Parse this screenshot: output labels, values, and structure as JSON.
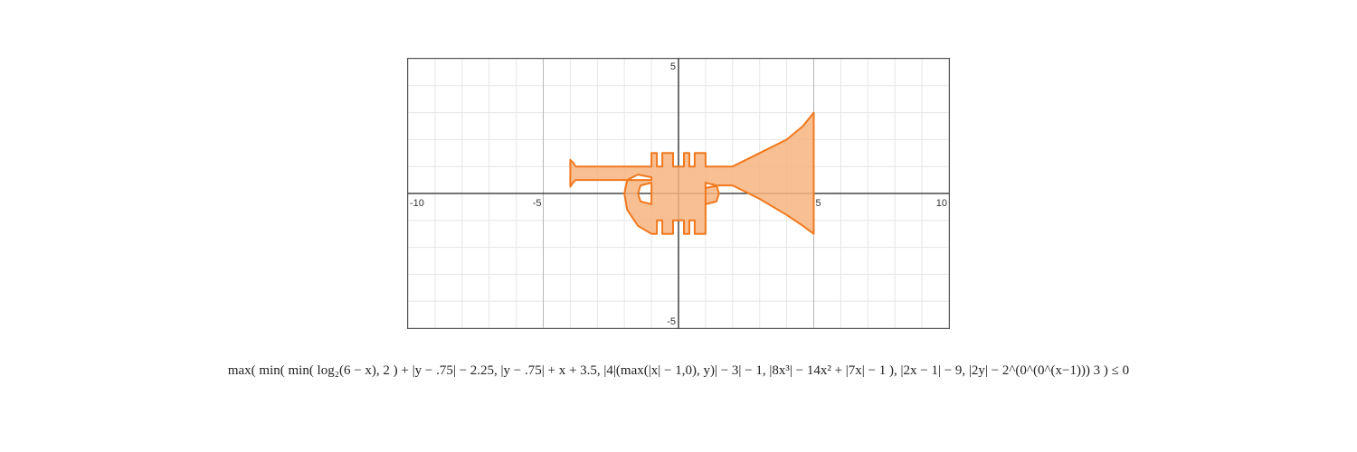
{
  "chart_data": {
    "type": "area",
    "title": "",
    "xlabel": "",
    "ylabel": "",
    "xlim": [
      -10,
      10
    ],
    "ylim": [
      -5,
      5
    ],
    "grid": true,
    "minor_step": 1,
    "major_step": 5,
    "x_tick_labels": [
      "-10",
      "-5",
      "5",
      "10"
    ],
    "y_tick_labels": [
      "5",
      "-5"
    ],
    "region": {
      "name": "trumpet",
      "fill": "#f6b47f",
      "stroke": "#f2781e",
      "x": [
        -4,
        -4,
        -3.9,
        -3.8,
        -3.8,
        -1.0,
        -1.0,
        -0.8,
        -0.8,
        -0.6,
        -0.6,
        -0.2,
        -0.2,
        0.2,
        0.2,
        0.4,
        0.4,
        0.6,
        0.6,
        1.0,
        1.0,
        2.0,
        3.0,
        4.0,
        4.6,
        5.0,
        5.0,
        4.6,
        4.0,
        3.0,
        2.0,
        1.5,
        1.0,
        1.0,
        0.6,
        0.6,
        0.4,
        0.4,
        0.2,
        0.2,
        -0.2,
        -0.2,
        -0.6,
        -0.6,
        -0.8,
        -0.8,
        -1.0,
        -1.5,
        -1.9,
        -2.0,
        -1.9,
        -1.5,
        -1.0,
        -1.0,
        -3.8,
        -3.8,
        -3.9,
        -4
      ],
      "y": [
        0.25,
        1.25,
        1.15,
        1.0,
        1.0,
        1.0,
        1.5,
        1.5,
        1.0,
        1.0,
        1.5,
        1.5,
        1.0,
        1.0,
        1.5,
        1.5,
        1.0,
        1.0,
        1.5,
        1.5,
        1.0,
        1.0,
        1.5,
        2.0,
        2.5,
        3.0,
        -1.5,
        -1.2,
        -0.8,
        -0.2,
        0.3,
        0.3,
        0.2,
        -1.5,
        -1.5,
        -1.0,
        -1.0,
        -1.5,
        -1.5,
        -1.0,
        -1.0,
        -1.5,
        -1.5,
        -1.0,
        -1.0,
        -1.5,
        -1.5,
        -1.2,
        -0.6,
        0.0,
        0.5,
        0.7,
        0.6,
        0.5,
        0.5,
        0.5,
        0.4,
        0.25
      ]
    },
    "holes": [
      {
        "x": [
          -1.0,
          -1.4,
          -1.5,
          -1.4,
          -1.0
        ],
        "y": [
          0.4,
          0.3,
          0.0,
          -0.3,
          -0.4
        ]
      },
      {
        "x": [
          1.0,
          1.4,
          1.5,
          1.4,
          1.0
        ],
        "y": [
          0.4,
          0.3,
          0.0,
          -0.3,
          -0.4
        ]
      }
    ]
  },
  "formula": {
    "text": "max( min( min( log₂(6 − x), 2 ) + |y − .75| − 2.25, |y − .75| + x + 3.5, |4|(max(|x| − 1,0), y)| − 3| − 1, |8x³| − 14x² + |7x| − 1 ), |2x − 1| − 9, |2y| − 2^(0^(0^(x−1))) 3 ) ≤ 0"
  }
}
